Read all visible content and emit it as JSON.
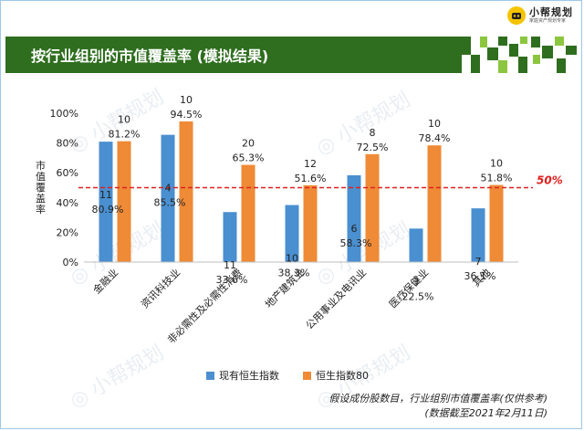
{
  "brand": {
    "name": "小帮规划",
    "tagline": "家庭资产规划专家"
  },
  "header": {
    "title": "按行业组别的市值覆盖率 (模拟结果)"
  },
  "watermark_text": "小帮规划",
  "colors": {
    "series1": "#4a8fd0",
    "series2": "#ef8a36",
    "reference_line": "#e02020",
    "title_bar": "#2e6e1e"
  },
  "chart_data": {
    "type": "bar",
    "categories": [
      "金融业",
      "资讯科技业",
      "非必需性及必需性消费",
      "地产建筑业",
      "公用事业及电讯业",
      "医疗保健业",
      "其他"
    ],
    "series": [
      {
        "name": "现有恒生指数",
        "values": [
          80.9,
          85.5,
          33.6,
          38.3,
          58.3,
          22.5,
          36.1
        ],
        "value_labels": [
          "80.9%",
          "85.5%",
          "33.6%",
          "38.3%",
          "58.3%",
          "22.5%",
          "36.1%"
        ],
        "counts": [
          "11",
          "4",
          "11",
          "10",
          "6",
          "3",
          "7"
        ]
      },
      {
        "name": "恒生指数80",
        "values": [
          81.2,
          94.5,
          65.3,
          51.6,
          72.5,
          78.4,
          51.8
        ],
        "value_labels": [
          "81.2%",
          "94.5%",
          "65.3%",
          "51.6%",
          "72.5%",
          "78.4%",
          "51.8%"
        ],
        "counts": [
          "10",
          "10",
          "20",
          "12",
          "8",
          "10",
          "10"
        ]
      }
    ],
    "ylabel": "市值覆盖率",
    "ylim": [
      0,
      100
    ],
    "yticks": [
      0,
      20,
      40,
      60,
      80,
      100
    ],
    "ytick_labels": [
      "0%",
      "20%",
      "40%",
      "60%",
      "80%",
      "100%"
    ],
    "reference_line": {
      "value": 50,
      "label": "50%"
    },
    "grid": false,
    "legend_position": "bottom"
  },
  "footnote": {
    "line1": "假设成份股数目，行业组别市值覆盖率(仅供参考)",
    "line2": "(数据截至2021年2月11日)"
  }
}
